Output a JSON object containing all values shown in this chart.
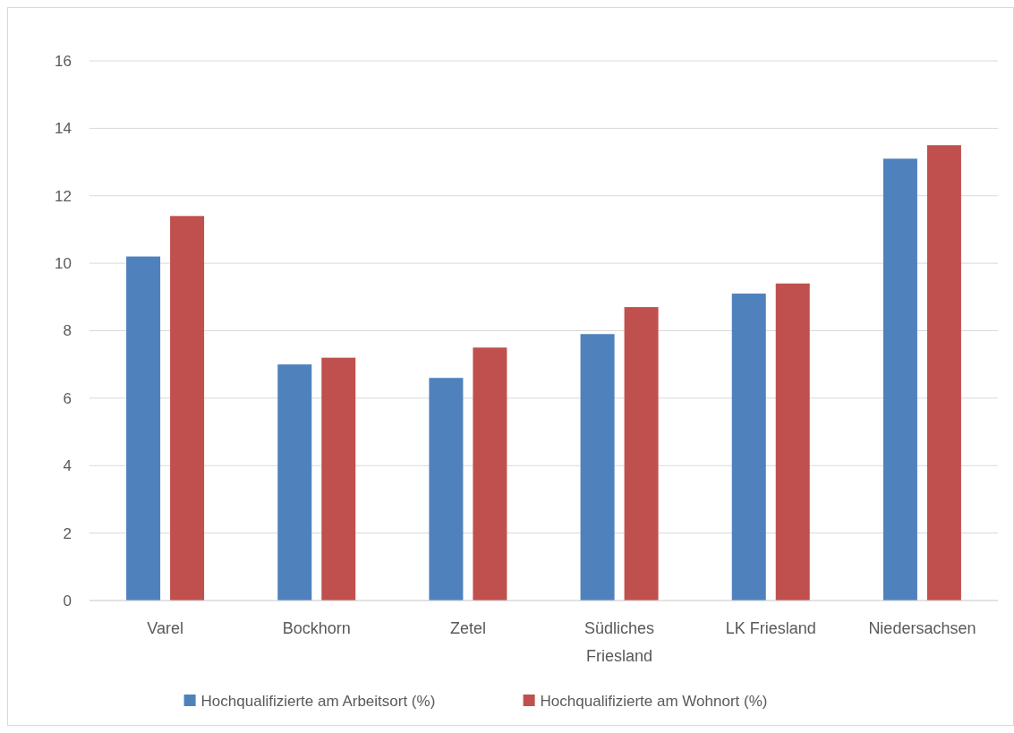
{
  "chart_data": {
    "type": "bar",
    "categories": [
      "Varel",
      "Bockhorn",
      "Zetel",
      "Südliches Friesland",
      "LK Friesland",
      "Niedersachsen"
    ],
    "series": [
      {
        "name": "Hochqualifizierte am Arbeitsort (%)",
        "color": "#4f81bd",
        "values": [
          10.2,
          7.0,
          6.6,
          7.9,
          9.1,
          13.1
        ]
      },
      {
        "name": "Hochqualifizierte am Wohnort (%)",
        "color": "#c0504d",
        "values": [
          11.4,
          7.2,
          7.5,
          8.7,
          9.4,
          13.5
        ]
      }
    ],
    "ylim": [
      0,
      16
    ],
    "yticks": [
      0,
      2,
      4,
      6,
      8,
      10,
      12,
      14,
      16
    ],
    "grid": "y",
    "legend": "bottom"
  }
}
